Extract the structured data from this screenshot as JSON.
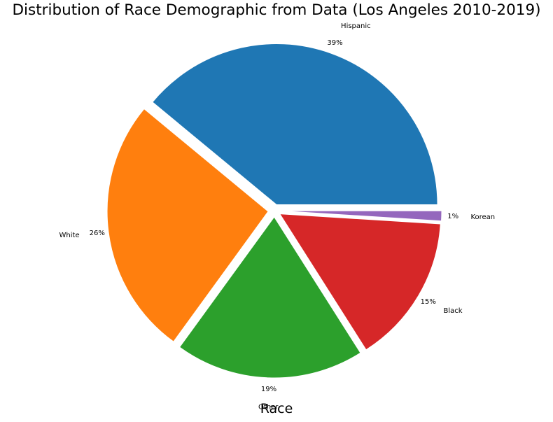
{
  "chart_data": {
    "type": "pie",
    "title": "Distribution of Race Demographic from Data (Los Angeles 2010-2019)",
    "xlabel": "Race",
    "labels": [
      "Hispanic",
      "White",
      "Other",
      "Black",
      "Korean"
    ],
    "values": [
      39,
      26,
      19,
      15,
      1
    ],
    "percent_labels": [
      "39%",
      "26%",
      "19%",
      "15%",
      "1%"
    ],
    "colors": [
      "#1f77b4",
      "#ff7f0e",
      "#2ca02c",
      "#d62728",
      "#9467bd"
    ],
    "start_angle_deg": 0,
    "direction": "counterclockwise",
    "exploded": true
  }
}
